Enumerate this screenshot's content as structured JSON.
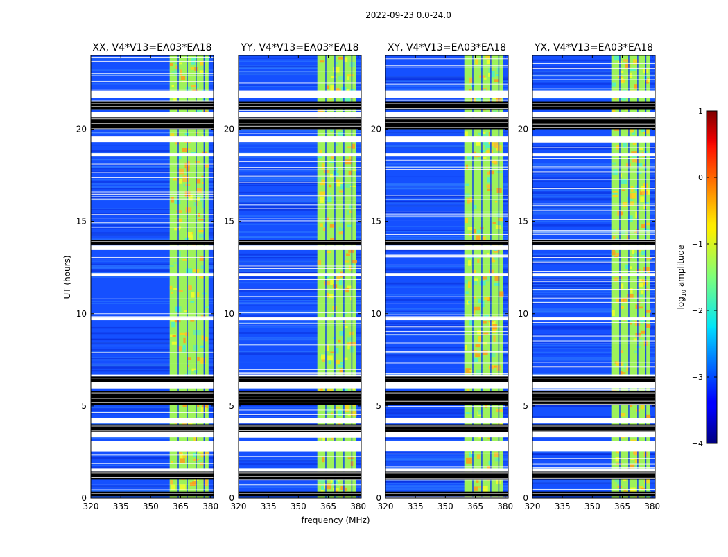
{
  "chart_data": {
    "type": "heatmap",
    "title": "2022-09-23 0.0-24.0",
    "xlabel": "frequency (MHz)",
    "ylabel": "UT (hours)",
    "xlim": [
      320,
      381.5
    ],
    "ylim": [
      0,
      24
    ],
    "x_ticks": [
      320,
      335,
      350,
      365,
      380
    ],
    "y_ticks": [
      0,
      5,
      10,
      15,
      20
    ],
    "panels": [
      {
        "name": "XX",
        "title": "XX, V4*V13=EA03*EA18"
      },
      {
        "name": "YY",
        "title": "YY, V4*V13=EA03*EA18"
      },
      {
        "name": "XY",
        "title": "XY, V4*V13=EA03*EA18"
      },
      {
        "name": "YX",
        "title": "YX, V4*V13=EA03*EA18"
      }
    ],
    "colorbar": {
      "label": "log10 amplitude",
      "label_text": "log",
      "label_sub": "10",
      "label_rest": " amplitude",
      "range": [
        -4,
        1
      ],
      "ticks": [
        -4,
        -3,
        -2,
        -1,
        0,
        1
      ],
      "tick_labels": [
        "−4",
        "−3",
        "−2",
        "−1",
        "0",
        "1"
      ],
      "colormap": "jet"
    },
    "bright_band_MHz": [
      359.5,
      379
    ],
    "blank_time_ranges_h": [
      [
        21.7,
        22.1
      ],
      [
        20.65,
        20.95
      ],
      [
        19.3,
        19.6
      ],
      [
        18.55,
        18.7
      ],
      [
        13.45,
        13.7
      ],
      [
        12.05,
        12.2
      ],
      [
        9.65,
        9.8
      ],
      [
        6.6,
        6.7
      ],
      [
        5.95,
        6.3
      ],
      [
        4.05,
        4.35
      ],
      [
        3.3,
        3.6
      ],
      [
        2.55,
        3.1
      ],
      [
        1.45,
        1.6
      ]
    ],
    "black_time_ranges_h": [
      [
        21.05,
        21.5
      ],
      [
        20.0,
        20.65
      ],
      [
        13.75,
        14.0
      ],
      [
        6.3,
        6.6
      ],
      [
        5.05,
        5.8
      ],
      [
        3.6,
        4.0
      ],
      [
        1.0,
        1.45
      ],
      [
        0.1,
        0.35
      ]
    ]
  }
}
